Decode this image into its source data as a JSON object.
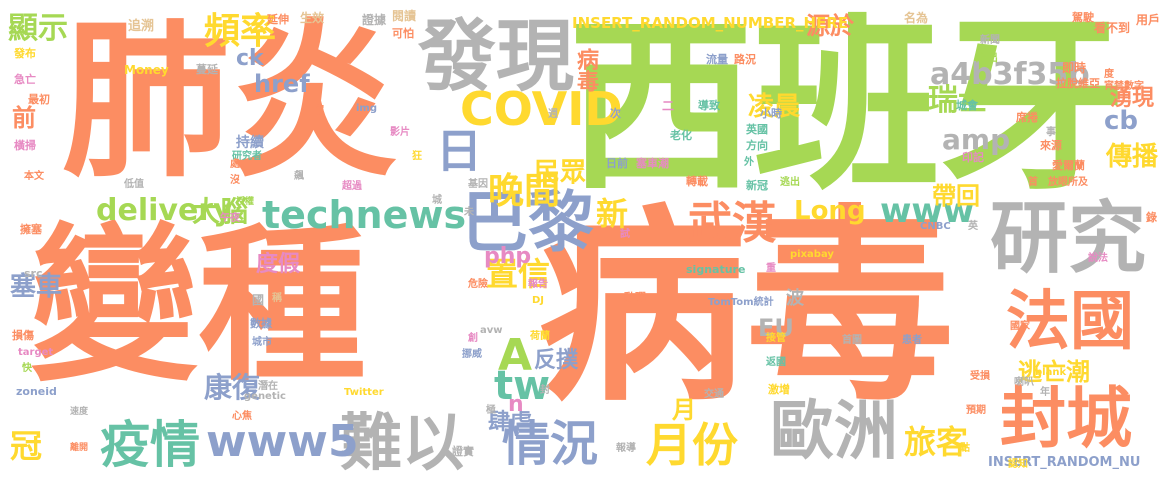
{
  "palette": {
    "orange": "#fc8d62",
    "green": "#a6d854",
    "gray": "#b3b3b3",
    "blue": "#8da0cb",
    "yellow": "#ffd92f",
    "pink": "#e78ac3",
    "teal": "#66c2a5",
    "tan": "#e5c494"
  },
  "words": [
    {
      "text": "肺炎",
      "color": "orange"
    },
    {
      "text": "西班牙",
      "color": "green"
    },
    {
      "text": "變種",
      "color": "orange"
    },
    {
      "text": "病毒",
      "color": "orange"
    },
    {
      "text": "發現",
      "color": "gray"
    },
    {
      "text": "研究",
      "color": "gray"
    },
    {
      "text": "COVID",
      "color": "yellow"
    },
    {
      "text": "巴黎",
      "color": "blue"
    },
    {
      "text": "法國",
      "color": "orange"
    },
    {
      "text": "封城",
      "color": "orange"
    },
    {
      "text": "歐洲",
      "color": "gray"
    },
    {
      "text": "難以",
      "color": "gray"
    },
    {
      "text": "疫情",
      "color": "teal"
    },
    {
      "text": "情況",
      "color": "blue"
    },
    {
      "text": "武漢",
      "color": "orange"
    },
    {
      "text": "technews",
      "color": "teal"
    },
    {
      "text": "www5",
      "color": "blue"
    },
    {
      "text": "月份",
      "color": "yellow"
    },
    {
      "text": "日",
      "color": "blue"
    },
    {
      "text": "a4b3f35b",
      "color": "gray"
    },
    {
      "text": "頻率",
      "color": "yellow"
    },
    {
      "text": "顯示",
      "color": "green"
    },
    {
      "text": "晚間",
      "color": "yellow"
    },
    {
      "text": "delivery",
      "color": "green"
    },
    {
      "text": "www",
      "color": "teal"
    },
    {
      "text": "瑞士",
      "color": "green"
    },
    {
      "text": "旅客",
      "color": "yellow"
    },
    {
      "text": "置信",
      "color": "yellow"
    },
    {
      "text": "A",
      "color": "green"
    },
    {
      "text": "tw",
      "color": "teal"
    },
    {
      "text": "冠",
      "color": "yellow"
    },
    {
      "text": "民眾",
      "color": "yellow"
    },
    {
      "text": "傳播",
      "color": "yellow"
    },
    {
      "text": "湧現",
      "color": "orange"
    },
    {
      "text": "凌晨",
      "color": "yellow"
    },
    {
      "text": "病毒",
      "color": "orange"
    },
    {
      "text": "康復",
      "color": "blue"
    },
    {
      "text": "大腦",
      "color": "green"
    },
    {
      "text": "新",
      "color": "yellow"
    },
    {
      "text": "amp",
      "color": "gray"
    },
    {
      "text": "cb",
      "color": "blue"
    },
    {
      "text": "Long",
      "color": "yellow"
    },
    {
      "text": "帶回",
      "color": "yellow"
    },
    {
      "text": "前",
      "color": "orange"
    },
    {
      "text": "塞車",
      "color": "blue"
    },
    {
      "text": "逃亡潮",
      "color": "yellow"
    },
    {
      "text": "源於",
      "color": "orange"
    },
    {
      "text": "EU",
      "color": "gray"
    },
    {
      "text": "php",
      "color": "pink"
    },
    {
      "text": "反撲",
      "color": "blue"
    },
    {
      "text": "肆虐",
      "color": "blue"
    },
    {
      "text": "href",
      "color": "blue"
    },
    {
      "text": "ck",
      "color": "blue"
    },
    {
      "text": "度假",
      "color": "pink"
    },
    {
      "text": "月",
      "color": "yellow"
    },
    {
      "text": "n",
      "color": "pink"
    },
    {
      "text": "INSERT_RANDOM_NUMBER_HERE",
      "color": "yellow"
    },
    {
      "text": "INSERT_RANDOM_NU",
      "color": "blue"
    },
    {
      "text": "追溯",
      "color": "tan"
    },
    {
      "text": "延伸",
      "color": "orange"
    },
    {
      "text": "生效",
      "color": "tan"
    },
    {
      "text": "證據",
      "color": "gray"
    },
    {
      "text": "閱讀",
      "color": "tan"
    },
    {
      "text": "名為",
      "color": "tan"
    },
    {
      "text": "駕駛",
      "color": "orange"
    },
    {
      "text": "看不到",
      "color": "orange"
    },
    {
      "text": "用戶",
      "color": "orange"
    },
    {
      "text": "發布",
      "color": "yellow"
    },
    {
      "text": "Money",
      "color": "yellow"
    },
    {
      "text": "蔓延",
      "color": "gray"
    },
    {
      "text": "急亡",
      "color": "pink"
    },
    {
      "text": "最初",
      "color": "orange"
    },
    {
      "text": "流量",
      "color": "blue"
    },
    {
      "text": "路況",
      "color": "orange"
    },
    {
      "text": "超出",
      "color": "green"
    },
    {
      "text": "新聞",
      "color": "gray"
    },
    {
      "text": "即時",
      "color": "orange"
    },
    {
      "text": "拉脫維亞",
      "color": "orange"
    },
    {
      "text": "宵禁數字",
      "color": "orange"
    },
    {
      "text": "橫掃",
      "color": "pink"
    },
    {
      "text": "持續",
      "color": "blue"
    },
    {
      "text": "研究者",
      "color": "teal"
    },
    {
      "text": "本文",
      "color": "orange"
    },
    {
      "text": "低值",
      "color": "gray"
    },
    {
      "text": "午夜",
      "color": "pink"
    },
    {
      "text": "擁塞",
      "color": "orange"
    },
    {
      "text": "src",
      "color": "gray"
    },
    {
      "text": "img",
      "color": "blue"
    },
    {
      "text": "帶",
      "color": "orange"
    },
    {
      "text": "影片",
      "color": "pink"
    },
    {
      "text": "基因",
      "color": "gray"
    },
    {
      "text": "超過",
      "color": "pink"
    },
    {
      "text": "授權",
      "color": "green"
    },
    {
      "text": "二",
      "color": "pink"
    },
    {
      "text": "次",
      "color": "blue"
    },
    {
      "text": "導致",
      "color": "teal"
    },
    {
      "text": "老化",
      "color": "teal"
    },
    {
      "text": "小時",
      "color": "blue"
    },
    {
      "text": "英國",
      "color": "teal"
    },
    {
      "text": "方向",
      "color": "teal"
    },
    {
      "text": "城會",
      "color": "teal"
    },
    {
      "text": "席捲",
      "color": "orange"
    },
    {
      "text": "印記",
      "color": "pink"
    },
    {
      "text": "愛爾蘭",
      "color": "orange"
    },
    {
      "text": "放眼所及",
      "color": "orange"
    },
    {
      "text": "來源",
      "color": "orange"
    },
    {
      "text": "事",
      "color": "gray"
    },
    {
      "text": "日前",
      "color": "blue"
    },
    {
      "text": "塞車潮",
      "color": "pink"
    },
    {
      "text": "轉載",
      "color": "orange"
    },
    {
      "text": "新冠",
      "color": "teal"
    },
    {
      "text": "逃出",
      "color": "green"
    },
    {
      "text": "外",
      "color": "teal"
    },
    {
      "text": "首",
      "color": "orange"
    },
    {
      "text": "錄",
      "color": "orange"
    },
    {
      "text": "說法",
      "color": "pink"
    },
    {
      "text": "波",
      "color": "gray"
    },
    {
      "text": "國",
      "color": "gray"
    },
    {
      "text": "稱",
      "color": "tan"
    },
    {
      "text": "數據",
      "color": "blue"
    },
    {
      "text": "城市",
      "color": "blue"
    },
    {
      "text": "損傷",
      "color": "orange"
    },
    {
      "text": "target",
      "color": "pink"
    },
    {
      "text": "快",
      "color": "green"
    },
    {
      "text": "zoneid",
      "color": "blue"
    },
    {
      "text": "速度",
      "color": "gray"
    },
    {
      "text": "離開",
      "color": "orange"
    },
    {
      "text": "危險",
      "color": "orange"
    },
    {
      "text": "報告",
      "color": "pink"
    },
    {
      "text": "DJ",
      "color": "yellow"
    },
    {
      "text": "signature",
      "color": "teal"
    },
    {
      "text": "pixabay",
      "color": "yellow"
    },
    {
      "text": "CNBC",
      "color": "blue"
    },
    {
      "text": "英",
      "color": "gray"
    },
    {
      "text": "動彈",
      "color": "orange"
    },
    {
      "text": "TomTom統計",
      "color": "blue"
    },
    {
      "text": "荷蘭",
      "color": "yellow"
    },
    {
      "text": "挪威",
      "color": "blue"
    },
    {
      "text": "avw",
      "color": "gray"
    },
    {
      "text": "接管",
      "color": "yellow"
    },
    {
      "text": "返國",
      "color": "teal"
    },
    {
      "text": "首圖",
      "color": "gray"
    },
    {
      "text": "患者",
      "color": "blue"
    },
    {
      "text": "國家",
      "color": "orange"
    },
    {
      "text": "_blank",
      "color": "yellow"
    },
    {
      "text": "潛在",
      "color": "gray"
    },
    {
      "text": "genetic",
      "color": "gray"
    },
    {
      "text": "Twitter",
      "color": "yellow"
    },
    {
      "text": "心焦",
      "color": "orange"
    },
    {
      "text": "極",
      "color": "gray"
    },
    {
      "text": "封",
      "color": "gray"
    },
    {
      "text": "交通",
      "color": "gray"
    },
    {
      "text": "激增",
      "color": "yellow"
    },
    {
      "text": "受損",
      "color": "orange"
    },
    {
      "text": "喇叭",
      "color": "gray"
    },
    {
      "text": "年",
      "color": "gray"
    },
    {
      "text": "預期",
      "color": "orange"
    },
    {
      "text": "證實",
      "color": "gray"
    },
    {
      "text": "報導",
      "color": "gray"
    },
    {
      "text": "點",
      "color": "yellow"
    },
    {
      "text": "認知",
      "color": "yellow"
    },
    {
      "text": "處",
      "color": "orange"
    },
    {
      "text": "沒",
      "color": "orange"
    },
    {
      "text": "飆",
      "color": "gray"
    },
    {
      "text": "狂",
      "color": "yellow"
    },
    {
      "text": "週",
      "color": "gray"
    },
    {
      "text": "未",
      "color": "gray"
    },
    {
      "text": "試",
      "color": "pink"
    },
    {
      "text": "創",
      "color": "pink"
    },
    {
      "text": "可怕",
      "color": "orange"
    },
    {
      "text": "城",
      "color": "gray"
    },
    {
      "text": "重",
      "color": "pink"
    },
    {
      "text": "度",
      "color": "orange"
    }
  ]
}
